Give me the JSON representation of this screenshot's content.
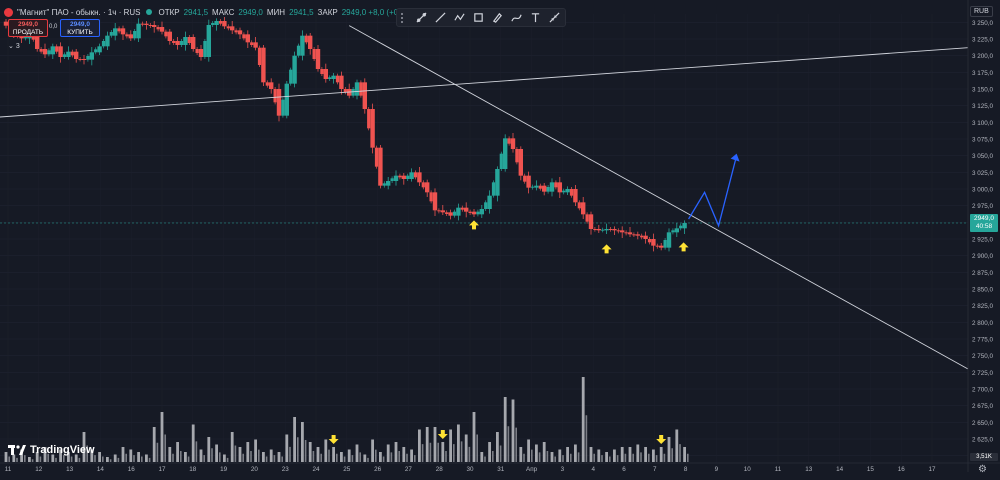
{
  "header": {
    "symbol": "\"Магнит\" ПАО - обыкн. · 1ч · RUS",
    "open_label": "ОТКР",
    "open_value": "2941,5",
    "high_label": "МАКС",
    "high_value": "2949,0",
    "low_label": "МИН",
    "low_value": "2941,5",
    "close_label": "ЗАКР",
    "close_value": "2949,0 +8,0 (+0,27%)"
  },
  "trade_panel": {
    "sell_price": "2949,0",
    "sell_label": "ПРОДАТЬ",
    "buy_price": "2949,0",
    "buy_label": "КУПИТЬ",
    "spread": "0,0",
    "indicators_count": "3"
  },
  "currency": "RUB",
  "last_price": {
    "price": "2949,0",
    "timer": "40:58"
  },
  "volume_tag": "3,51K",
  "branding": "TradingView",
  "colors": {
    "bg": "#161a25",
    "up": "#26a69a",
    "down": "#ef5350",
    "trend": "#d1d4dc",
    "forecast": "#2962ff",
    "arrow": "#ffe234",
    "volume": "#a6a8ae"
  },
  "toolbar_icons": [
    "trend-line-icon",
    "ray-icon",
    "zigzag-icon",
    "rectangle-icon",
    "brush-icon",
    "path-icon",
    "text-icon",
    "measure-icon"
  ],
  "chart_data": {
    "type": "candlestick",
    "ylim": [
      2587.5,
      3262.5
    ],
    "y_ticks": [
      "3 250,0",
      "3 225,0",
      "3 200,0",
      "3 175,0",
      "3 150,0",
      "3 125,0",
      "3 100,0",
      "3 075,0",
      "3 050,0",
      "3 025,0",
      "3 000,0",
      "2 975,0",
      "2 950,0",
      "2 925,0",
      "2 900,0",
      "2 875,0",
      "2 850,0",
      "2 825,0",
      "2 800,0",
      "2 775,0",
      "2 750,0",
      "2 725,0",
      "2 700,0",
      "2 675,0",
      "2 650,0",
      "2 625,0",
      "2 600,0"
    ],
    "x_ticks": [
      "11",
      "12",
      "13",
      "14",
      "16",
      "17",
      "18",
      "19",
      "20",
      "23",
      "24",
      "25",
      "26",
      "27",
      "28",
      "30",
      "31",
      "Апр",
      "3",
      "4",
      "6",
      "7",
      "8",
      "9",
      "10",
      "11",
      "13",
      "14",
      "15",
      "16",
      "17"
    ],
    "close_series": [
      3245,
      3232,
      3226,
      3238,
      3210,
      3202,
      3214,
      3198,
      3206,
      3195,
      3194,
      3205,
      3214,
      3230,
      3241,
      3232,
      3226,
      3248,
      3246,
      3243,
      3236,
      3222,
      3216,
      3228,
      3210,
      3198,
      3246,
      3252,
      3244,
      3238,
      3232,
      3220,
      3212,
      3160,
      3150,
      3110,
      3158,
      3200,
      3230,
      3210,
      3180,
      3165,
      3170,
      3150,
      3140,
      3160,
      3120,
      3062,
      3005,
      3012,
      3020,
      3015,
      3025,
      3010,
      2995,
      2968,
      2965,
      2960,
      2972,
      2966,
      2962,
      2970,
      2990,
      3030,
      3076,
      3060,
      3020,
      3002,
      3005,
      2996,
      3010,
      2995,
      3000,
      2980,
      2962,
      2940,
      2938,
      2940,
      2938,
      2935,
      2932,
      2930,
      2925,
      2915,
      2912,
      2935,
      2941,
      2949
    ],
    "volume_series": [
      4,
      3,
      5,
      2,
      4,
      6,
      3,
      5,
      4,
      3,
      12,
      5,
      4,
      2,
      3,
      6,
      5,
      4,
      3,
      14,
      20,
      6,
      8,
      4,
      15,
      5,
      10,
      7,
      3,
      12,
      6,
      8,
      9,
      4,
      5,
      4,
      11,
      18,
      16,
      8,
      6,
      9,
      6,
      4,
      5,
      7,
      3,
      9,
      4,
      7,
      8,
      6,
      5,
      13,
      14,
      14,
      8,
      13,
      15,
      11,
      20,
      4,
      8,
      12,
      26,
      25,
      6,
      9,
      7,
      8,
      4,
      5,
      6,
      7,
      34,
      6,
      5,
      4,
      5,
      6,
      6,
      7,
      6,
      5,
      6,
      10,
      13,
      6
    ],
    "volume_ylim": [
      0,
      36
    ],
    "annotations": {
      "trendline_descending": {
        "from_bar": 31,
        "from_price": 3245,
        "to_bar": "off-chart",
        "to_price": 2730
      },
      "trendline_rising": {
        "from_price": 3108,
        "to_price": 3212
      },
      "forecast_path_prices": [
        2955,
        2995,
        2945,
        3050
      ],
      "support_arrows_prices": [
        2956,
        2920,
        2923
      ],
      "volume_arrow_bars": [
        42,
        56,
        84
      ]
    }
  }
}
